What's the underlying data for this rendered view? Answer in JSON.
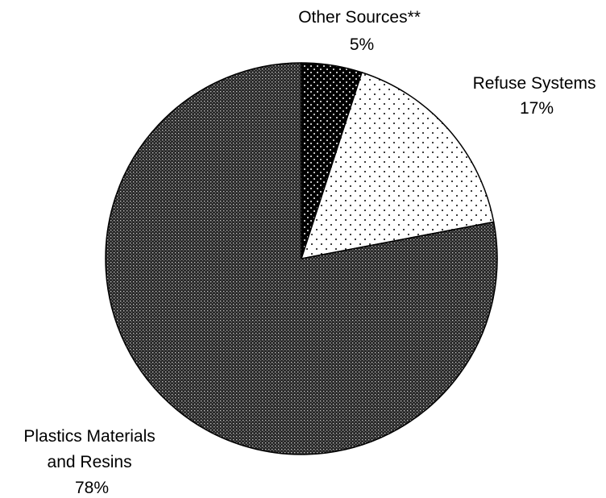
{
  "chart_data": {
    "type": "pie",
    "title": "",
    "slices": [
      {
        "label_lines": [
          "Other Sources**"
        ],
        "pct_label": "5%",
        "value": 5,
        "pattern": "black-white-dots"
      },
      {
        "label_lines": [
          "Refuse Systems"
        ],
        "pct_label": "17%",
        "value": 17,
        "pattern": "white-black-dots"
      },
      {
        "label_lines": [
          "Plastics Materials",
          "and Resins"
        ],
        "pct_label": "78%",
        "value": 78,
        "pattern": "dark-gray-dots"
      }
    ],
    "start_angle_deg": 0,
    "direction": "clockwise",
    "legend": "none"
  }
}
